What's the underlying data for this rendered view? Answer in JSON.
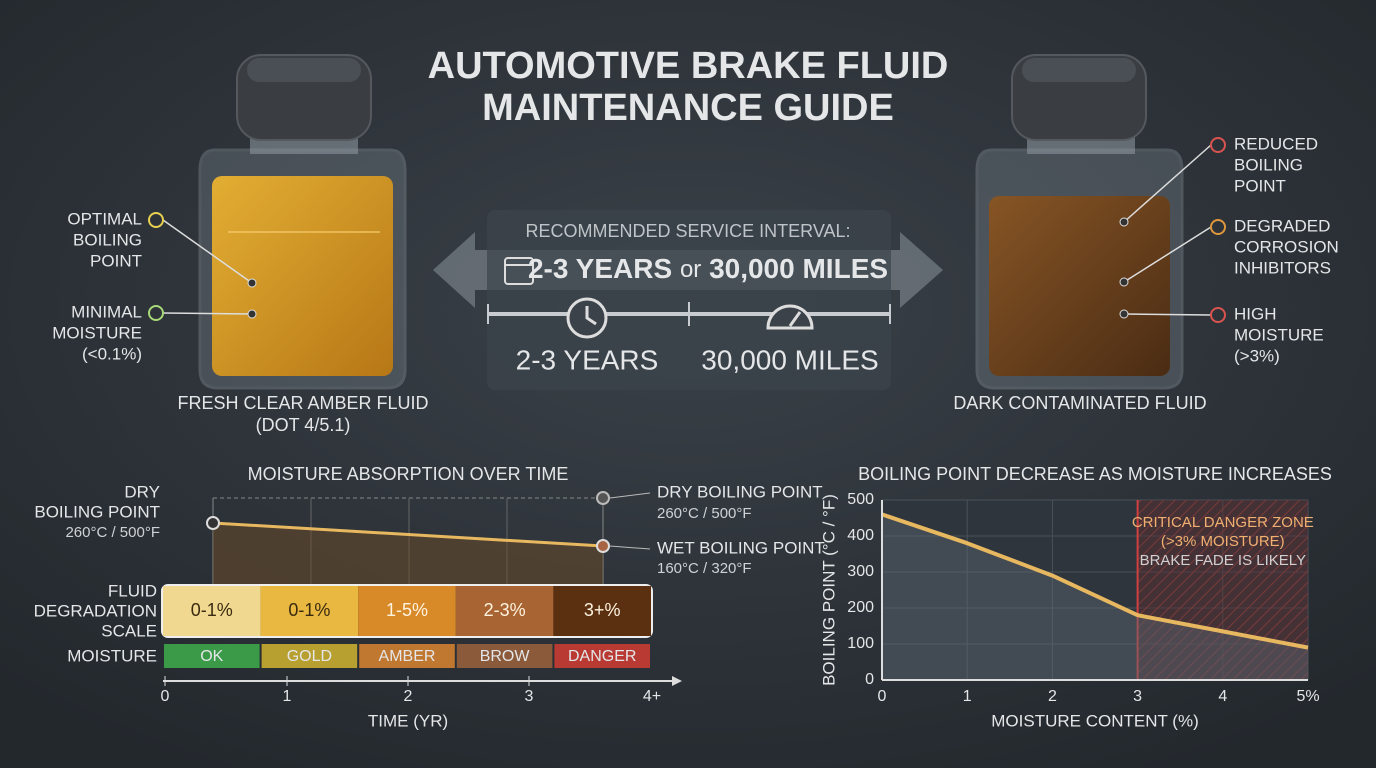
{
  "title": [
    "AUTOMOTIVE BRAKE FLUID",
    "MAINTENANCE GUIDE"
  ],
  "fresh": {
    "callouts": [
      [
        "OPTIMAL",
        "BOILING",
        "POINT"
      ],
      [
        "MINIMAL",
        "MOISTURE",
        "(<0.1%)"
      ]
    ],
    "caption": [
      "FRESH CLEAR AMBER FLUID",
      "(DOT 4/5.1)"
    ]
  },
  "dark": {
    "callouts": [
      [
        "REDUCED",
        "BOILING",
        "POINT"
      ],
      [
        "DEGRADED",
        "CORROSION",
        "INHIBITORS"
      ],
      [
        "HIGH",
        "MOISTURE",
        "(>3%)"
      ]
    ],
    "caption": "DARK CONTAMINATED FLUID"
  },
  "service": {
    "heading": "RECOMMENDED SERVICE INTERVAL:",
    "interval_a": "2-3 YEARS",
    "interval_or": "or",
    "interval_b": "30,000 MILES",
    "years": "2-3 YEARS",
    "miles": "30,000 MILES"
  },
  "moisture_chart": {
    "title": "MOISTURE ABSORPTION OVER TIME",
    "dry_left": [
      "DRY",
      "BOILING POINT",
      "260°C / 500°F"
    ],
    "dry_right": [
      "DRY BOILING POINT",
      "260°C / 500°F"
    ],
    "wet_right": [
      "WET BOILING POINT",
      "160°C / 320°F"
    ],
    "scale_label": [
      "FLUID",
      "DEGRADATION",
      "SCALE"
    ],
    "scale": [
      "0-1%",
      "0-1%",
      "1-5%",
      "2-3%",
      "3+%"
    ],
    "moisture_label": "MOISTURE",
    "moisture": [
      "OK",
      "GOLD",
      "AMBER",
      "BROW",
      "DANGER"
    ],
    "xticks": [
      "0",
      "1",
      "2",
      "3",
      "4+"
    ],
    "xlabel": "TIME (YR)"
  },
  "boiling_chart": {
    "type": "line",
    "title": "BOILING POINT DECREASE AS MOISTURE INCREASES",
    "x": [
      0,
      1,
      2,
      3,
      4,
      5
    ],
    "values": [
      460,
      380,
      290,
      180,
      135,
      90
    ],
    "color": "#e8b860",
    "xlim": [
      0,
      5
    ],
    "ylim": [
      0,
      500
    ],
    "xticks": [
      0,
      1,
      2,
      3,
      4,
      {
        "value": 5,
        "label": "5%"
      }
    ],
    "yticks": [
      0,
      100,
      200,
      300,
      400,
      500
    ],
    "xlabel": "MOISTURE CONTENT (%)",
    "ylabel": "BOILING POINT (°C / °F)",
    "zone": [
      "CRITICAL DANGER ZONE",
      "(>3% MOISTURE)",
      "BRAKE FADE IS LIKELY"
    ],
    "grid": true
  }
}
